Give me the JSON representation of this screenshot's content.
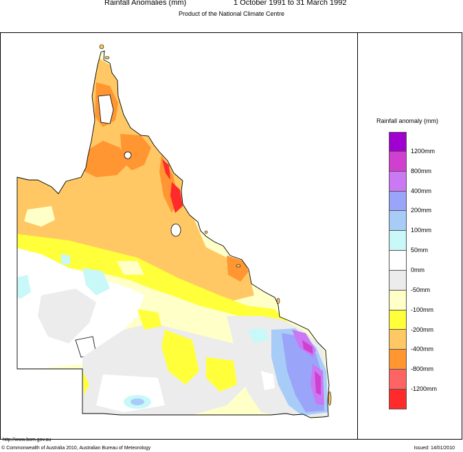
{
  "header": {
    "title": "Rainfall Anomalies (mm)",
    "period": "1 October 1991 to 31 March 1992",
    "subtitle": "Product of the National Climate Centre"
  },
  "legend": {
    "title": "Rainfall anomaly (mm)",
    "colors": [
      "#a000d0",
      "#d040d0",
      "#ca78f4",
      "#9aa4f8",
      "#a8ccf8",
      "#c8f8f8",
      "#ffffff",
      "#ececec",
      "#ffffc8",
      "#ffff3a",
      "#ffc864",
      "#ff9632",
      "#ff6464",
      "#ff2a2a"
    ],
    "labels": [
      "1200mm",
      "800mm",
      "400mm",
      "200mm",
      "100mm",
      "50mm",
      "0mm",
      "-50mm",
      "-100mm",
      "-200mm",
      "-400mm",
      "-800mm",
      "-1200mm"
    ]
  },
  "footer": {
    "url": "http://www.bom.gov.au",
    "copyright": "© Commonwealth of Australia 2010, Australian Bureau of Meteorology",
    "issued": "Issued: 14/01/2010"
  }
}
